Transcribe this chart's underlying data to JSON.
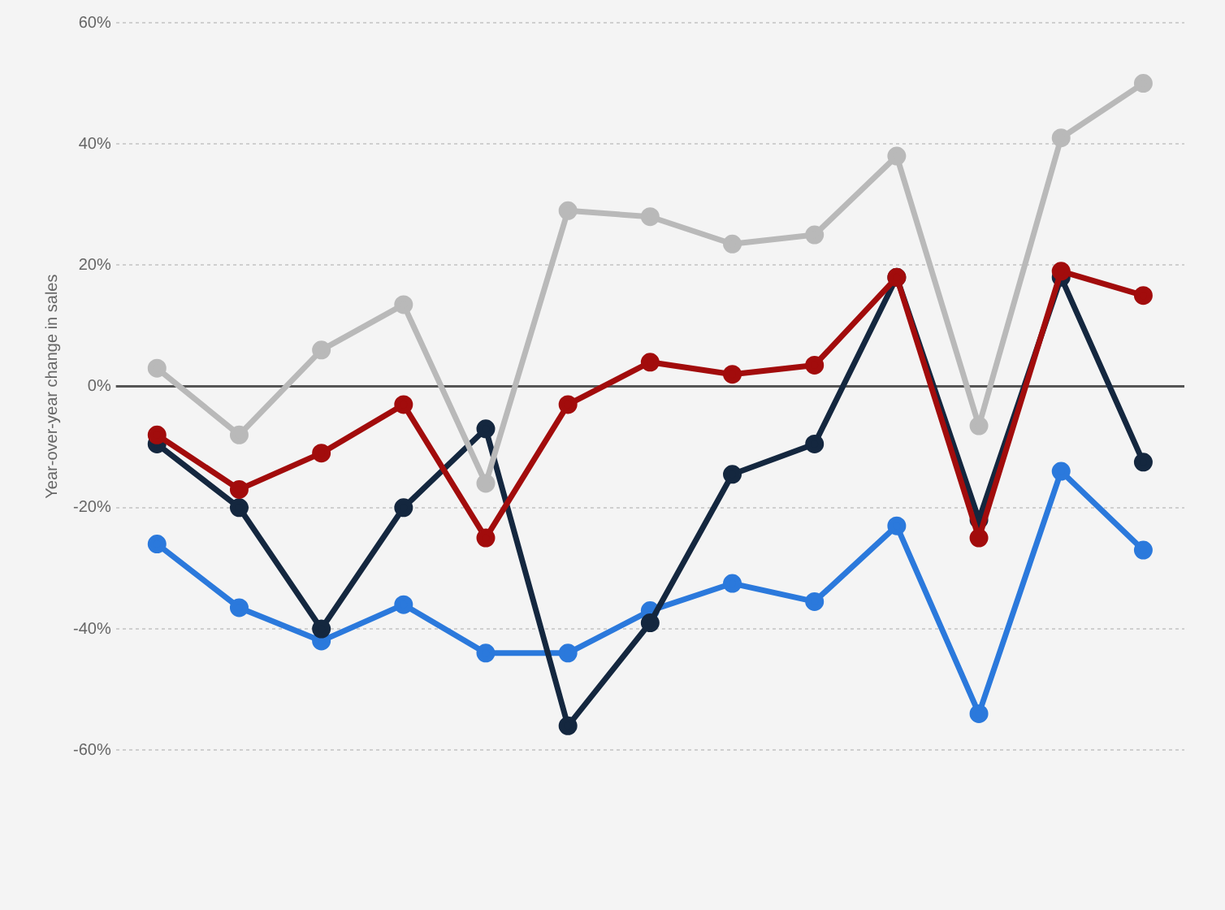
{
  "chart_data": {
    "type": "line",
    "ylabel": "Year-over-year change in sales",
    "categories": [
      null,
      null,
      null,
      null,
      null,
      null,
      null,
      null,
      null,
      null,
      null,
      null,
      null
    ],
    "series": [
      {
        "color": "#b9b9b9",
        "values": [
          3,
          -8,
          6,
          13.5,
          -16,
          29,
          28,
          23.5,
          25,
          38,
          -6.5,
          41,
          50
        ]
      },
      {
        "color": "#a20c0c",
        "values": [
          -8,
          -17,
          -11,
          -3,
          -25,
          -3,
          4,
          2,
          3.5,
          18,
          -25,
          19,
          15
        ]
      },
      {
        "color": "#14273f",
        "values": [
          -9.5,
          -20,
          -40,
          -20,
          -7,
          -56,
          -39,
          -14.5,
          -9.5,
          18,
          -22,
          18,
          -12.5
        ]
      },
      {
        "color": "#2b79dc",
        "values": [
          -26,
          -36.5,
          -42,
          -36,
          -44,
          -44,
          -37,
          -32.5,
          -35.5,
          -23,
          -54,
          -14,
          -27
        ]
      }
    ],
    "ylim": [
      -60,
      60
    ],
    "yticks": [
      {
        "value": -60,
        "label": "-60%"
      },
      {
        "value": -40,
        "label": "-40%"
      },
      {
        "value": -20,
        "label": "-20%"
      },
      {
        "value": 0,
        "label": "0%"
      },
      {
        "value": 20,
        "label": "20%"
      },
      {
        "value": 40,
        "label": "40%"
      },
      {
        "value": 60,
        "label": "60%"
      }
    ],
    "ref_lines": [
      {
        "axis": "y",
        "value": 0,
        "color": "#555555"
      }
    ],
    "grid": "y",
    "legend": false,
    "marker": "circle",
    "line_style": "solid"
  }
}
